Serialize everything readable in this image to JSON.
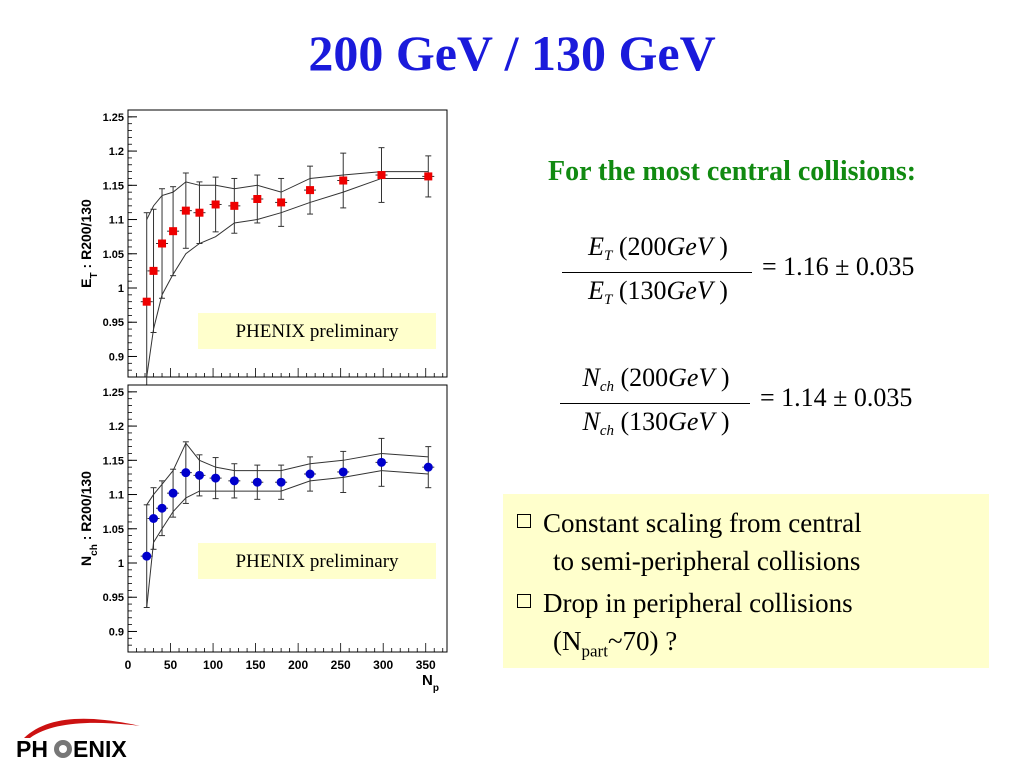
{
  "slide": {
    "title": "200 GeV / 130 GeV",
    "central_title": "For the most central collisions:",
    "eq1": {
      "rhs": "= 1.16 ± 0.035"
    },
    "eq2": {
      "rhs": "= 1.14 ± 0.035"
    },
    "bullets": [
      {
        "line1": "Constant scaling from central",
        "line2": "to semi-peripheral collisions"
      },
      {
        "line1": "Drop in peripheral collisions",
        "line2a": "(N",
        "line2sub": "part",
        "line2b": "~70) ?"
      }
    ],
    "logo": {
      "left": "PH",
      "right": "ENIX"
    }
  },
  "chart_data": [
    {
      "type": "scatter",
      "ylabel": "E_T : R200/130",
      "xlabel": "",
      "ylim": [
        0.87,
        1.26
      ],
      "xlim": [
        0,
        375
      ],
      "yticks": [
        0.9,
        0.95,
        1,
        1.05,
        1.1,
        1.15,
        1.2,
        1.25
      ],
      "annotation": "PHENIX preliminary",
      "marker": "square",
      "color": "#ee0000",
      "x": [
        22,
        30,
        40,
        53,
        68,
        84,
        103,
        125,
        152,
        180,
        214,
        253,
        298,
        353
      ],
      "y": [
        0.98,
        1.025,
        1.065,
        1.083,
        1.113,
        1.11,
        1.122,
        1.12,
        1.13,
        1.125,
        1.143,
        1.157,
        1.165,
        1.163
      ],
      "yerr": [
        0.13,
        0.09,
        0.08,
        0.065,
        0.055,
        0.045,
        0.04,
        0.04,
        0.035,
        0.035,
        0.035,
        0.04,
        0.04,
        0.03
      ],
      "upper_band": [
        1.1,
        1.12,
        1.135,
        1.14,
        1.155,
        1.15,
        1.15,
        1.145,
        1.15,
        1.14,
        1.16,
        1.165,
        1.17,
        1.17
      ],
      "lower_band": [
        0.87,
        0.94,
        0.99,
        1.02,
        1.05,
        1.065,
        1.075,
        1.095,
        1.1,
        1.11,
        1.125,
        1.14,
        1.16,
        1.16
      ]
    },
    {
      "type": "scatter",
      "ylabel": "N_ch : R200/130",
      "xlabel": "N_p",
      "ylim": [
        0.87,
        1.26
      ],
      "xlim": [
        0,
        375
      ],
      "yticks": [
        0.9,
        0.95,
        1,
        1.05,
        1.1,
        1.15,
        1.2,
        1.25
      ],
      "xticks": [
        0,
        50,
        100,
        150,
        200,
        250,
        300,
        350
      ],
      "annotation": "PHENIX preliminary",
      "marker": "circle",
      "color": "#0000cc",
      "x": [
        22,
        30,
        40,
        53,
        68,
        84,
        103,
        125,
        152,
        180,
        214,
        253,
        298,
        353
      ],
      "y": [
        1.01,
        1.065,
        1.08,
        1.102,
        1.132,
        1.128,
        1.124,
        1.12,
        1.118,
        1.118,
        1.13,
        1.133,
        1.147,
        1.14
      ],
      "yerr": [
        0.075,
        0.045,
        0.04,
        0.035,
        0.045,
        0.03,
        0.03,
        0.025,
        0.025,
        0.025,
        0.025,
        0.03,
        0.035,
        0.03
      ],
      "upper_band": [
        1.085,
        1.1,
        1.115,
        1.135,
        1.175,
        1.15,
        1.14,
        1.135,
        1.135,
        1.135,
        1.145,
        1.15,
        1.16,
        1.155
      ],
      "lower_band": [
        0.935,
        1.03,
        1.05,
        1.075,
        1.095,
        1.105,
        1.105,
        1.105,
        1.105,
        1.105,
        1.12,
        1.125,
        1.135,
        1.13
      ]
    }
  ]
}
